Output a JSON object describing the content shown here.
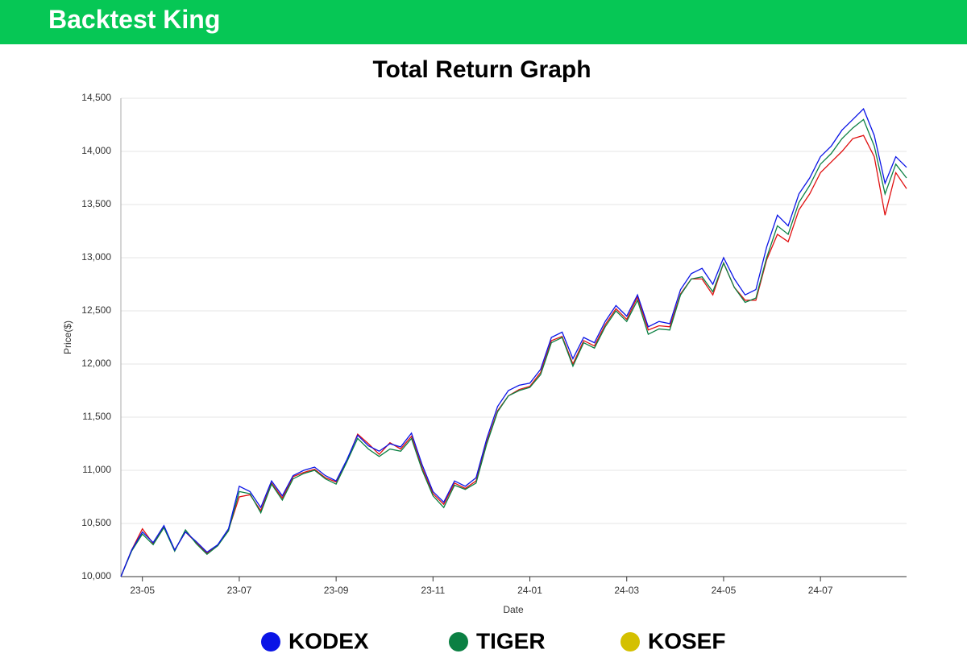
{
  "header": {
    "title": "Backtest King"
  },
  "chart_data": {
    "type": "line",
    "title": "Total Return Graph",
    "x_label": "Date",
    "y_label": "Price($)",
    "categories": [
      null,
      null,
      "23-05",
      null,
      null,
      null,
      null,
      null,
      null,
      null,
      null,
      "23-07",
      null,
      null,
      null,
      null,
      null,
      null,
      null,
      null,
      "23-09",
      null,
      null,
      null,
      null,
      null,
      null,
      null,
      null,
      "23-11",
      null,
      null,
      null,
      null,
      null,
      null,
      null,
      null,
      "24-01",
      null,
      null,
      null,
      null,
      null,
      null,
      null,
      null,
      "24-03",
      null,
      null,
      null,
      null,
      null,
      null,
      null,
      null,
      "24-05",
      null,
      null,
      null,
      null,
      null,
      null,
      null,
      null,
      "24-07",
      null,
      null,
      null,
      null,
      null,
      null,
      null,
      null
    ],
    "ylim": [
      10000,
      14500
    ],
    "yticks": [
      {
        "value": 10000,
        "label": "10,000"
      },
      {
        "value": 10500,
        "label": "10,500"
      },
      {
        "value": 11000,
        "label": "11,000"
      },
      {
        "value": 11500,
        "label": "11,500"
      },
      {
        "value": 12000,
        "label": "12,000"
      },
      {
        "value": 12500,
        "label": "12,500"
      },
      {
        "value": 13000,
        "label": "13,000"
      },
      {
        "value": 13500,
        "label": "13,500"
      },
      {
        "value": 14000,
        "label": "14,000"
      },
      {
        "value": 14500,
        "label": "14,500"
      }
    ],
    "grid": true,
    "series": [
      {
        "name": "KODEX",
        "color": "#0a14e6",
        "values": [
          10000,
          10250,
          10420,
          10320,
          10480,
          10250,
          10420,
          10330,
          10230,
          10300,
          10450,
          10850,
          10800,
          10650,
          10900,
          10760,
          10950,
          11000,
          11030,
          10950,
          10900,
          11100,
          11330,
          11230,
          11180,
          11250,
          11220,
          11350,
          11050,
          10800,
          10700,
          10900,
          10850,
          10930,
          11300,
          11600,
          11750,
          11800,
          11820,
          11950,
          12250,
          12300,
          12050,
          12250,
          12200,
          12400,
          12550,
          12450,
          12650,
          12350,
          12400,
          12380,
          12700,
          12850,
          12900,
          12750,
          13000,
          12800,
          12650,
          12700,
          13100,
          13400,
          13300,
          13600,
          13750,
          13950,
          14050,
          14200,
          14300,
          14400,
          14150,
          13700,
          13950,
          13850
        ]
      },
      {
        "name": "TIGER",
        "color": "#0b8043",
        "values": [
          10000,
          10240,
          10400,
          10300,
          10460,
          10240,
          10440,
          10310,
          10210,
          10290,
          10430,
          10800,
          10780,
          10600,
          10870,
          10720,
          10920,
          10970,
          11000,
          10920,
          10870,
          11080,
          11300,
          11200,
          11130,
          11200,
          11180,
          11300,
          11000,
          10760,
          10650,
          10860,
          10820,
          10880,
          11250,
          11550,
          11700,
          11750,
          11780,
          11900,
          12200,
          12250,
          11980,
          12200,
          12150,
          12350,
          12500,
          12400,
          12600,
          12280,
          12330,
          12320,
          12650,
          12800,
          12820,
          12680,
          12950,
          12720,
          12580,
          12620,
          13000,
          13300,
          13220,
          13520,
          13680,
          13880,
          13980,
          14120,
          14220,
          14300,
          14050,
          13600,
          13880,
          13750
        ]
      },
      {
        "name": "KOSEF",
        "color": "#e01010",
        "legend_color": "#d4c000",
        "values": [
          10000,
          10250,
          10450,
          10310,
          10470,
          10250,
          10420,
          10320,
          10220,
          10290,
          10440,
          10750,
          10770,
          10620,
          10880,
          10740,
          10940,
          10980,
          11010,
          10930,
          10890,
          11090,
          11340,
          11250,
          11150,
          11260,
          11200,
          11320,
          11020,
          10780,
          10680,
          10880,
          10830,
          10900,
          11270,
          11560,
          11700,
          11760,
          11790,
          11920,
          12220,
          12260,
          12000,
          12220,
          12170,
          12370,
          12520,
          12420,
          12630,
          12320,
          12360,
          12350,
          12660,
          12800,
          12800,
          12650,
          12950,
          12720,
          12600,
          12600,
          12980,
          13220,
          13150,
          13450,
          13600,
          13800,
          13900,
          14000,
          14120,
          14150,
          13950,
          13400,
          13800,
          13650
        ]
      }
    ]
  }
}
